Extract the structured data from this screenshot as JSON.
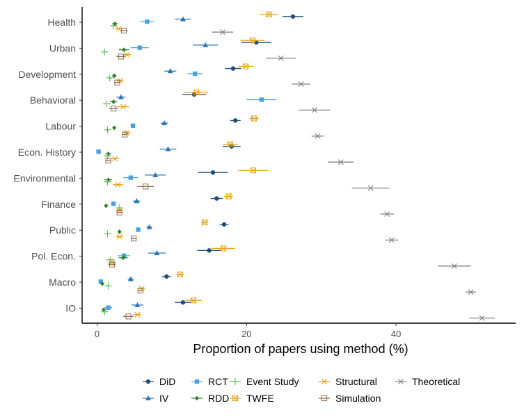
{
  "chart_data": {
    "type": "dot-errorbar",
    "xlabel": "Proportion of papers using method (%)",
    "ylabel": "",
    "xlim": [
      -2,
      56
    ],
    "xticks": [
      0,
      20,
      40
    ],
    "categories": [
      "Health",
      "Urban",
      "Development",
      "Behavioral",
      "Labour",
      "Econ. History",
      "Environmental",
      "Finance",
      "Public",
      "Pol. Econ.",
      "Macro",
      "IO"
    ],
    "series": [
      {
        "name": "DiD",
        "color": "#1f4e79",
        "marker": "circle",
        "offset": -0.22,
        "values": [
          26.2,
          21.3,
          18.2,
          13.0,
          18.5,
          18.0,
          15.5,
          16.0,
          17.0,
          15.0,
          9.3,
          11.5
        ],
        "errors": [
          1.4,
          2.0,
          1.1,
          1.6,
          0.7,
          1.2,
          2.0,
          0.8,
          0.6,
          1.6,
          0.6,
          1.1
        ]
      },
      {
        "name": "IV",
        "color": "#2e75b6",
        "marker": "triangle",
        "offset": -0.12,
        "values": [
          11.5,
          14.5,
          9.8,
          3.2,
          9.0,
          9.5,
          7.8,
          5.3,
          7.0,
          8.0,
          4.5,
          5.4
        ],
        "errors": [
          1.1,
          1.7,
          0.8,
          0.6,
          0.5,
          1.1,
          1.4,
          0.5,
          0.4,
          1.2,
          0.4,
          0.8
        ]
      },
      {
        "name": "RCT",
        "color": "#4aa3df",
        "marker": "square",
        "offset": -0.02,
        "values": [
          6.7,
          5.7,
          13.1,
          22.0,
          4.8,
          0.2,
          4.5,
          2.2,
          5.5,
          3.6,
          0.5,
          1.5
        ],
        "errors": [
          0.9,
          1.2,
          1.0,
          2.0,
          0.3,
          0.2,
          1.0,
          0.2,
          0.3,
          0.8,
          0.2,
          0.5
        ]
      },
      {
        "name": "RDD",
        "color": "#2e7d32",
        "marker": "diamond",
        "offset": 0.06,
        "values": [
          2.4,
          3.6,
          2.3,
          2.2,
          2.3,
          1.5,
          1.5,
          1.2,
          3.0,
          3.5,
          0.7,
          0.9
        ],
        "errors": [
          0.4,
          0.7,
          0.3,
          0.5,
          0.2,
          0.4,
          0.5,
          0.1,
          0.2,
          0.6,
          0.1,
          0.3
        ]
      },
      {
        "name": "Event Study",
        "color": "#5cb85c",
        "marker": "plus",
        "offset": 0.14,
        "values": [
          2.2,
          1.0,
          1.7,
          1.3,
          1.4,
          1.4,
          1.4,
          3.0,
          1.4,
          1.8,
          1.5,
          1.0
        ],
        "errors": [
          0.4,
          0.4,
          0.3,
          0.5,
          0.2,
          0.4,
          0.5,
          0.2,
          0.2,
          0.5,
          0.2,
          0.4
        ]
      },
      {
        "name": "TWFE",
        "color": "#e8a117",
        "marker": "boxx",
        "offset": -0.3,
        "values": [
          23.0,
          20.8,
          19.9,
          13.3,
          21.0,
          17.8,
          20.9,
          17.6,
          14.4,
          16.9,
          11.1,
          12.9
        ],
        "errors": [
          1.2,
          1.6,
          1.0,
          1.6,
          0.6,
          1.0,
          2.0,
          0.6,
          0.5,
          1.6,
          0.5,
          1.1
        ]
      },
      {
        "name": "Structural",
        "color": "#e8a117",
        "marker": "asterisk",
        "offset": 0.25,
        "values": [
          2.9,
          4.0,
          3.1,
          3.5,
          4.0,
          2.4,
          2.8,
          3.0,
          3.0,
          2.0,
          6.0,
          5.4
        ],
        "errors": [
          0.5,
          0.6,
          0.4,
          0.8,
          0.2,
          0.5,
          0.7,
          0.3,
          0.2,
          0.5,
          0.3,
          0.5
        ]
      },
      {
        "name": "Simulation",
        "color": "#8c6d4f",
        "marker": "boxminus",
        "offset": 0.32,
        "values": [
          3.6,
          3.2,
          2.7,
          2.2,
          3.7,
          1.5,
          6.5,
          3.0,
          4.9,
          2.0,
          5.8,
          4.2
        ],
        "errors": [
          0.5,
          0.6,
          0.4,
          0.6,
          0.3,
          0.4,
          1.1,
          0.3,
          0.3,
          0.5,
          0.3,
          0.7
        ]
      },
      {
        "name": "Theoretical",
        "color": "#808080",
        "marker": "x",
        "offset": 0.38,
        "values": [
          16.8,
          24.6,
          27.3,
          29.1,
          29.5,
          32.6,
          36.6,
          38.8,
          39.4,
          47.8,
          50.0,
          51.5
        ],
        "errors": [
          1.4,
          2.0,
          1.2,
          2.1,
          0.8,
          1.7,
          2.5,
          0.9,
          0.9,
          2.2,
          0.7,
          1.7
        ]
      }
    ],
    "legend": {
      "position": "bottom",
      "order": [
        [
          "DiD",
          "RCT",
          "Event Study",
          "Structural",
          "Theoretical"
        ],
        [
          "IV",
          "RDD",
          "TWFE",
          "Simulation"
        ]
      ]
    }
  }
}
